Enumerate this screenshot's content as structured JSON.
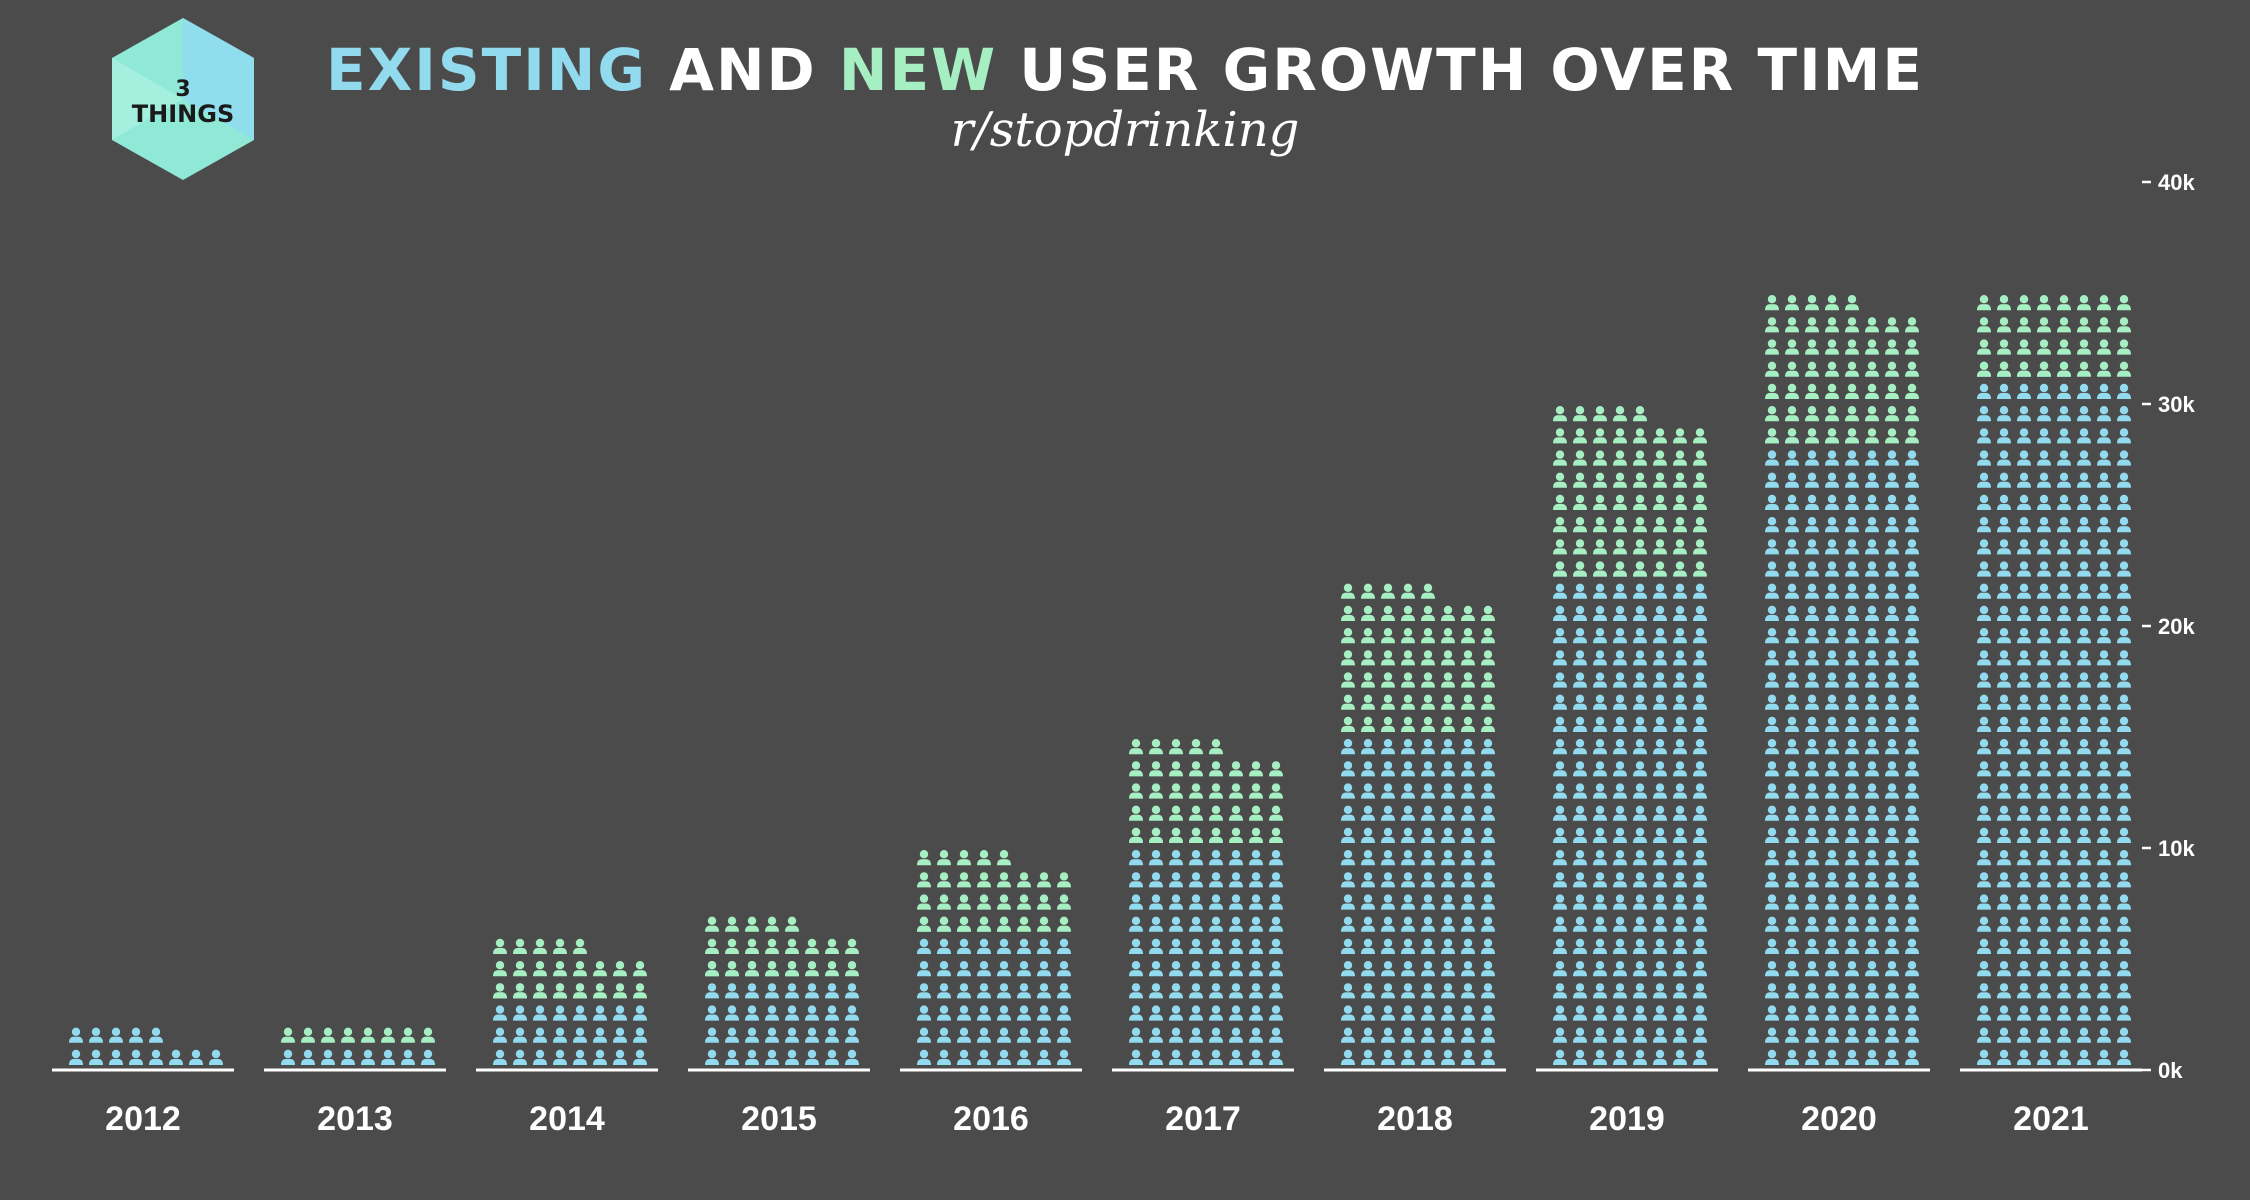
{
  "logo": {
    "text_line1": "3",
    "text_line2": "THINGS"
  },
  "title": {
    "part1": "EXISTING",
    "part2": " AND ",
    "part3": "NEW",
    "part4": " USER GROWTH OVER TIME"
  },
  "subtitle": "r/stopdrinking",
  "colors": {
    "background": "#4b4b4b",
    "existing": "#92dbef",
    "new": "#a6efc3",
    "text": "#ffffff"
  },
  "chart_data": {
    "type": "bar",
    "style": "pictogram-stacked",
    "categories": [
      "2012",
      "2013",
      "2014",
      "2015",
      "2016",
      "2017",
      "2018",
      "2019",
      "2020",
      "2021"
    ],
    "series": [
      {
        "values": [
          500,
          1000,
          2500,
          3500,
          5500,
          9500,
          15000,
          21500,
          27500,
          30500
        ]
      },
      {
        "values": [
          0,
          1000,
          1500,
          1500,
          2500,
          3500,
          5500,
          6500,
          5500,
          4000
        ]
      }
    ],
    "ylim": [
      0,
      40000
    ],
    "yticks": [
      0,
      10000,
      20000,
      30000,
      40000
    ],
    "ytick_labels": [
      "0k",
      "10k",
      "20k",
      "30k",
      "40k"
    ],
    "grid": false,
    "xlabel": "",
    "ylabel": ""
  }
}
